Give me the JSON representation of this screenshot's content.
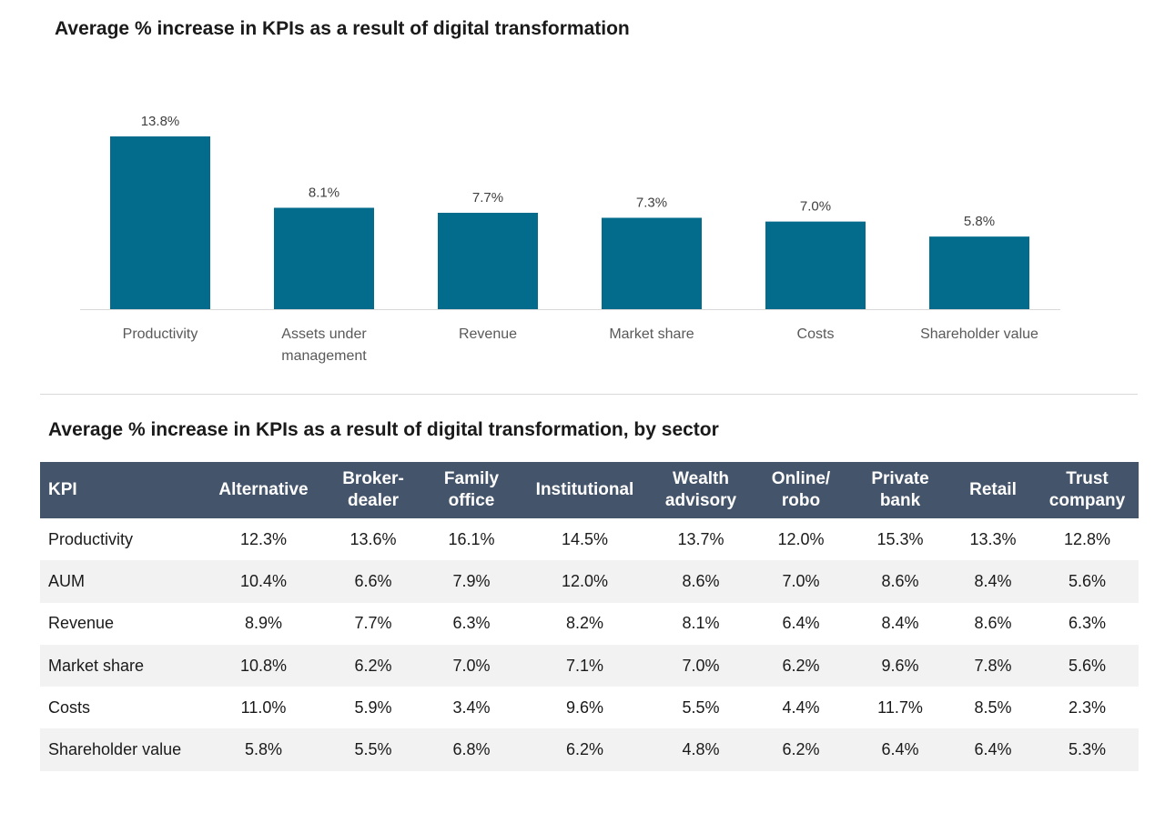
{
  "chart_data": [
    {
      "type": "bar",
      "title": "Average % increase in KPIs as a result of digital transformation",
      "categories": [
        "Productivity",
        "Assets under management",
        "Revenue",
        "Market share",
        "Costs",
        "Shareholder value"
      ],
      "category_lines": [
        [
          "Productivity"
        ],
        [
          "Assets under",
          "management"
        ],
        [
          "Revenue"
        ],
        [
          "Market share"
        ],
        [
          "Costs"
        ],
        [
          "Shareholder value"
        ]
      ],
      "values": [
        13.8,
        8.1,
        7.7,
        7.3,
        7.0,
        5.8
      ],
      "data_labels": [
        "13.8%",
        "8.1%",
        "7.7%",
        "7.3%",
        "7.0%",
        "5.8%"
      ],
      "ylim": [
        0,
        14.5
      ],
      "xlabel": "",
      "ylabel": "",
      "grid": false,
      "bar_color": "#036b8b"
    },
    {
      "type": "table",
      "title": "Average % increase in KPIs as a result of digital transformation, by sector",
      "columns": [
        "KPI",
        "Alternative",
        "Broker-dealer",
        "Family office",
        "Institutional",
        "Wealth advisory",
        "Online/robo",
        "Private bank",
        "Retail",
        "Trust company"
      ],
      "column_lines": [
        [
          "KPI"
        ],
        [
          "Alternative"
        ],
        [
          "Broker-",
          "dealer"
        ],
        [
          "Family",
          "office"
        ],
        [
          "Institutional"
        ],
        [
          "Wealth",
          "advisory"
        ],
        [
          "Online/",
          "robo"
        ],
        [
          "Private",
          "bank"
        ],
        [
          "Retail"
        ],
        [
          "Trust",
          "company"
        ]
      ],
      "rows": [
        [
          "Productivity",
          "12.3%",
          "13.6%",
          "16.1%",
          "14.5%",
          "13.7%",
          "12.0%",
          "15.3%",
          "13.3%",
          "12.8%"
        ],
        [
          "AUM",
          "10.4%",
          "6.6%",
          "7.9%",
          "12.0%",
          "8.6%",
          "7.0%",
          "8.6%",
          "8.4%",
          "5.6%"
        ],
        [
          "Revenue",
          "8.9%",
          "7.7%",
          "6.3%",
          "8.2%",
          "8.1%",
          "6.4%",
          "8.4%",
          "8.6%",
          "6.3%"
        ],
        [
          "Market share",
          "10.8%",
          "6.2%",
          "7.0%",
          "7.1%",
          "7.0%",
          "6.2%",
          "9.6%",
          "7.8%",
          "5.6%"
        ],
        [
          "Costs",
          "11.0%",
          "5.9%",
          "3.4%",
          "9.6%",
          "5.5%",
          "4.4%",
          "11.7%",
          "8.5%",
          "2.3%"
        ],
        [
          "Shareholder value",
          "5.8%",
          "5.5%",
          "6.8%",
          "6.2%",
          "4.8%",
          "6.2%",
          "6.4%",
          "6.4%",
          "5.3%"
        ]
      ],
      "header_color": "#44546a",
      "stripe_color": "#f2f2f2"
    }
  ]
}
